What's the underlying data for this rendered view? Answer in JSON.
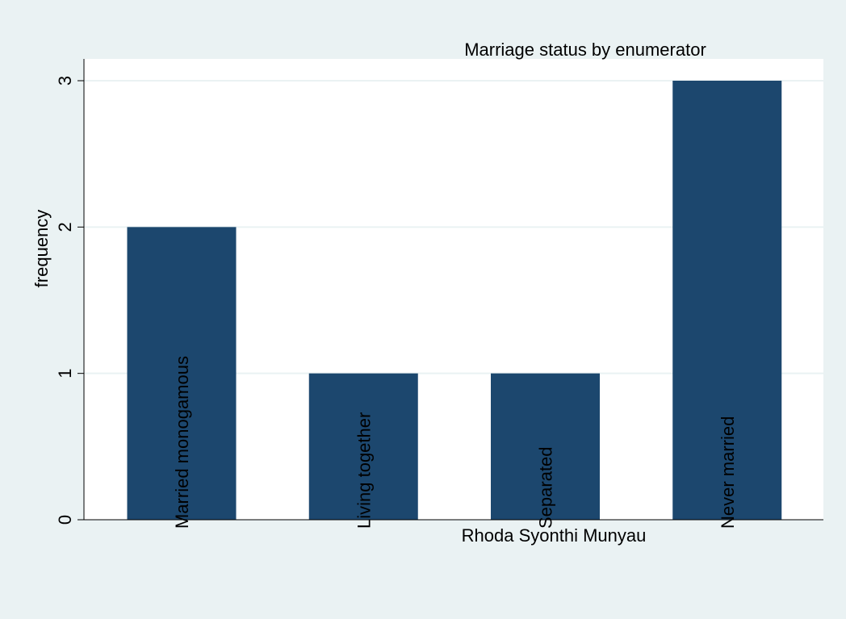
{
  "chart_data": {
    "type": "bar",
    "title": "Marriage status by enumerator",
    "subtitle": "Rhoda Syonthi Munyau",
    "xlabel": "",
    "ylabel": "frequency",
    "categories": [
      "Married monogamous",
      "Living together",
      "Separated",
      "Never married"
    ],
    "values": [
      2,
      1,
      1,
      3
    ],
    "ylim": [
      0,
      3
    ],
    "yticks": [
      0,
      1,
      2,
      3
    ],
    "grid": true,
    "legend": "none",
    "colors": {
      "bar": "#1c476e",
      "grid": "#eaf2f3",
      "background": "#eaf2f3",
      "plot_background": "#ffffff"
    }
  }
}
